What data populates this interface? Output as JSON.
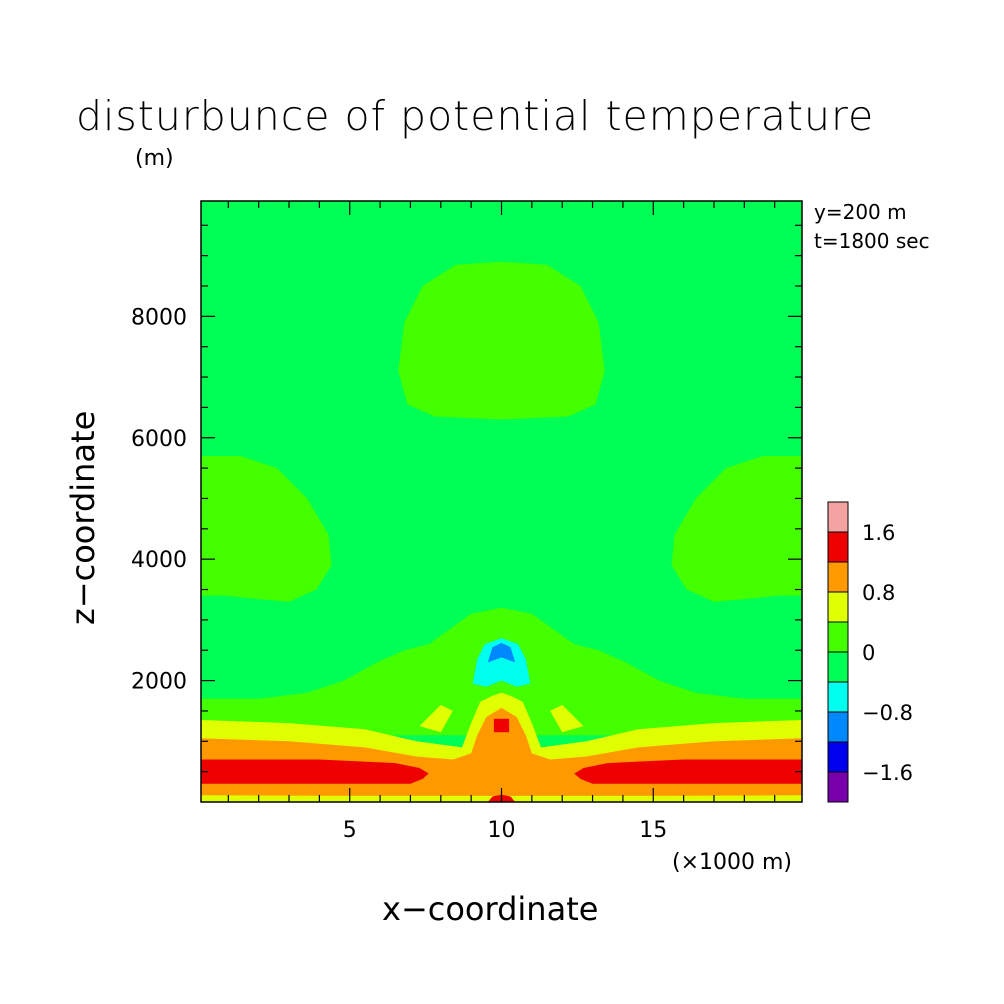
{
  "chart_data": {
    "type": "heatmap",
    "title": "disturbunce of potential temperature",
    "xlabel": "x−coordinate",
    "ylabel": "z−coordinate",
    "x_unit": "(×1000 m)",
    "y_unit": "(m)",
    "annotations": [
      "y=200 m",
      "t=1800 sec"
    ],
    "xlim": [
      0.1,
      19.9
    ],
    "ylim": [
      0,
      9900
    ],
    "x_ticks": [
      5,
      10,
      15
    ],
    "x_tick_labels": [
      "5",
      "10",
      "15"
    ],
    "y_ticks": [
      2000,
      4000,
      6000,
      8000
    ],
    "y_tick_labels": [
      "2000",
      "4000",
      "6000",
      "8000"
    ],
    "colorbar": {
      "tick_labels": [
        "1.6",
        "0.8",
        "0",
        "−0.8",
        "−1.6"
      ],
      "tick_values": [
        1.6,
        0.8,
        0,
        -0.8,
        -1.6
      ],
      "bins": [
        {
          "range": [
            1.6,
            2.0
          ],
          "color": "#f4a3a3"
        },
        {
          "range": [
            1.2,
            1.6
          ],
          "color": "#ee0000"
        },
        {
          "range": [
            0.8,
            1.2
          ],
          "color": "#ff9900"
        },
        {
          "range": [
            0.4,
            0.8
          ],
          "color": "#e0ff00"
        },
        {
          "range": [
            0.0,
            0.4
          ],
          "color": "#44ff00"
        },
        {
          "range": [
            -0.4,
            0.0
          ],
          "color": "#00ff55"
        },
        {
          "range": [
            -0.8,
            -0.4
          ],
          "color": "#00ffee"
        },
        {
          "range": [
            -1.2,
            -0.8
          ],
          "color": "#0088ff"
        },
        {
          "range": [
            -1.6,
            -1.2
          ],
          "color": "#0000ee"
        },
        {
          "range": [
            -2.0,
            -1.6
          ],
          "color": "#7700aa"
        }
      ]
    },
    "regions": [
      {
        "name": "background",
        "level_range": [
          -0.4,
          0.0
        ],
        "color": "#00ff55"
      },
      {
        "name": "upper-warm-blob",
        "level_range": [
          0.0,
          0.4
        ],
        "color": "#44ff00",
        "x_range": [
          6.6,
          13.4
        ],
        "z_range": [
          6300,
          8900
        ]
      },
      {
        "name": "left-warm-blob",
        "level_range": [
          0.0,
          0.4
        ],
        "color": "#44ff00",
        "x_range": [
          0.1,
          4.4
        ],
        "z_range": [
          3300,
          5700
        ]
      },
      {
        "name": "right-warm-blob",
        "level_range": [
          0.0,
          0.4
        ],
        "color": "#44ff00",
        "x_range": [
          15.6,
          19.9
        ],
        "z_range": [
          3300,
          5700
        ]
      },
      {
        "name": "central-plume",
        "level_range": [
          0.0,
          0.4
        ],
        "color": "#44ff00",
        "x_range": [
          5.0,
          15.0
        ],
        "z_range": [
          1600,
          3200
        ]
      },
      {
        "name": "cold-core",
        "level_range": [
          -1.2,
          -0.4
        ],
        "color": "#00ffee",
        "x_range": [
          9.1,
          10.9
        ],
        "z_range": [
          1900,
          2700
        ]
      },
      {
        "name": "warm-core",
        "level_range": [
          0.8,
          1.6
        ],
        "color": "#ff9900",
        "x_range": [
          9.3,
          10.7
        ],
        "z_range": [
          900,
          1600
        ]
      },
      {
        "name": "lower-warm-layer",
        "level_range": [
          0.4,
          0.8
        ],
        "color": "#e0ff00",
        "x_range": [
          0.1,
          19.9
        ],
        "z_range": [
          0,
          1600
        ]
      },
      {
        "name": "lower-hot-layer",
        "level_range": [
          1.2,
          1.6
        ],
        "color": "#ee0000",
        "x_range": [
          0.1,
          19.9
        ],
        "z_range": [
          300,
          700
        ]
      }
    ]
  }
}
